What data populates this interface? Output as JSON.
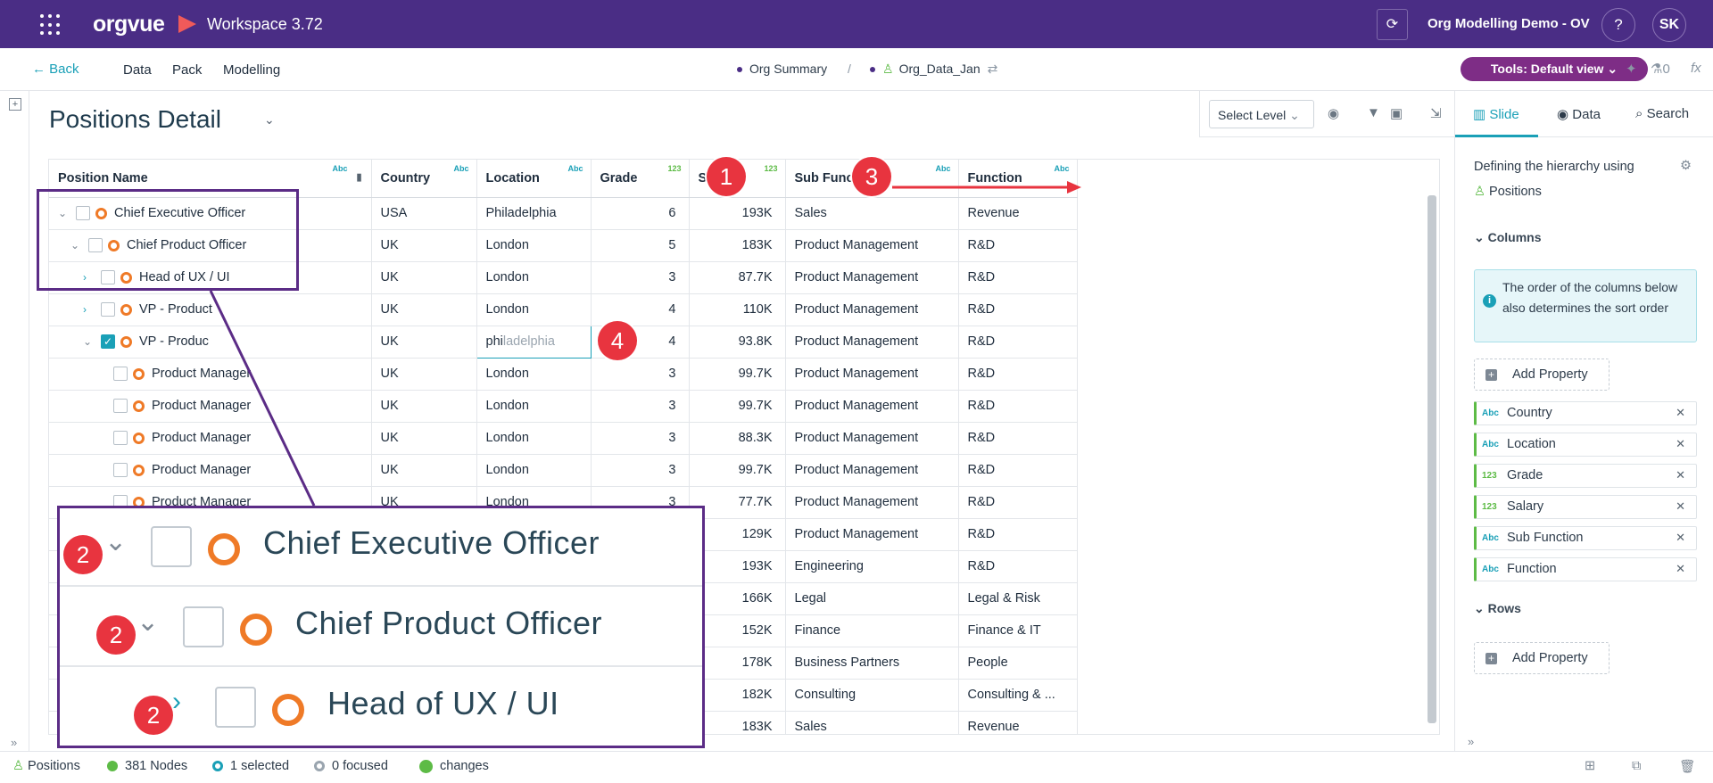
{
  "topbar": {
    "logo": "orgvue",
    "workspace": "Workspace  3.72",
    "project": "Org Modelling Demo - OV",
    "help": "?",
    "avatar": "SK"
  },
  "nav": {
    "back": "Back",
    "items": [
      "Data",
      "Pack",
      "Modelling"
    ],
    "crumb1": "Org Summary",
    "separator": "/",
    "crumb2": "Org_Data_Jan",
    "tools_btn": "Tools: Default view",
    "count": "0"
  },
  "page": {
    "title": "Positions Detail",
    "select_level": "Select Level"
  },
  "table": {
    "columns": [
      {
        "label": "Position Name",
        "type": "Abc"
      },
      {
        "label": "Country",
        "type": "Abc"
      },
      {
        "label": "Location",
        "type": "Abc"
      },
      {
        "label": "Grade",
        "type": "123"
      },
      {
        "label": "Sa",
        "type": "123"
      },
      {
        "label": "Sub Functi",
        "type": "Abc"
      },
      {
        "label": "Function",
        "type": "Abc"
      }
    ],
    "rows": [
      {
        "name": "Chief Executive Officer",
        "country": "USA",
        "location": "Philadelphia",
        "grade": "6",
        "salary": "193K",
        "sub": "Sales",
        "func": "Revenue"
      },
      {
        "name": "Chief Product Officer",
        "country": "UK",
        "location": "London",
        "grade": "5",
        "salary": "183K",
        "sub": "Product Management",
        "func": "R&D"
      },
      {
        "name": "Head of UX / UI",
        "country": "UK",
        "location": "London",
        "grade": "3",
        "salary": "87.7K",
        "sub": "Product Management",
        "func": "R&D"
      },
      {
        "name": "VP - Product",
        "country": "UK",
        "location": "London",
        "grade": "4",
        "salary": "110K",
        "sub": "Product Management",
        "func": "R&D"
      },
      {
        "name": "VP - Produc",
        "country": "UK",
        "location_typed": "phi",
        "location_hint": "ladelphia",
        "grade": "4",
        "salary": "93.8K",
        "sub": "Product Management",
        "func": "R&D"
      },
      {
        "name": "Product Manager",
        "country": "UK",
        "location": "London",
        "grade": "3",
        "salary": "99.7K",
        "sub": "Product Management",
        "func": "R&D"
      },
      {
        "name": "Product Manager",
        "country": "UK",
        "location": "London",
        "grade": "3",
        "salary": "99.7K",
        "sub": "Product Management",
        "func": "R&D"
      },
      {
        "name": "Product Manager",
        "country": "UK",
        "location": "London",
        "grade": "3",
        "salary": "88.3K",
        "sub": "Product Management",
        "func": "R&D"
      },
      {
        "name": "Product Manager",
        "country": "UK",
        "location": "London",
        "grade": "3",
        "salary": "99.7K",
        "sub": "Product Management",
        "func": "R&D"
      },
      {
        "name": "Product Manager",
        "country": "UK",
        "location": "London",
        "grade": "3",
        "salary": "77.7K",
        "sub": "Product Management",
        "func": "R&D"
      },
      {
        "salary": "129K",
        "sub": "Product Management",
        "func": "R&D"
      },
      {
        "salary": "193K",
        "sub": "Engineering",
        "func": "R&D"
      },
      {
        "salary": "166K",
        "sub": "Legal",
        "func": "Legal & Risk"
      },
      {
        "salary": "152K",
        "sub": "Finance",
        "func": "Finance & IT"
      },
      {
        "salary": "178K",
        "sub": "Business Partners",
        "func": "People"
      },
      {
        "salary": "182K",
        "sub": "Consulting",
        "func": "Consulting & ..."
      },
      {
        "salary": "183K",
        "sub": "Sales",
        "func": "Revenue"
      }
    ]
  },
  "zoom": {
    "rows": [
      "Chief Executive Officer",
      "Chief Product Officer",
      "Head of UX / UI"
    ]
  },
  "badges": [
    "1",
    "2",
    "3",
    "4"
  ],
  "panel": {
    "tabs": [
      "Slide",
      "Data",
      "Search"
    ],
    "hierarchy_text": "Defining the hierarchy using",
    "hierarchy_value": "Positions",
    "columns_h": "Columns",
    "info": "The order of the columns below also determines the sort order",
    "add_property": "Add Property",
    "properties": [
      {
        "type": "Abc",
        "label": "Country"
      },
      {
        "type": "Abc",
        "label": "Location"
      },
      {
        "type": "123",
        "label": "Grade"
      },
      {
        "type": "123",
        "label": "Salary"
      },
      {
        "type": "Abc",
        "label": "Sub Function"
      },
      {
        "type": "Abc",
        "label": "Function"
      }
    ],
    "rows_h": "Rows"
  },
  "status": {
    "positions": "Positions",
    "nodes": "381 Nodes",
    "selected": "1 selected",
    "focused": "0 focused",
    "changes": "changes"
  },
  "colors": {
    "topbar": "#4a2d85",
    "accent": "#1aa0b7",
    "tools": "#7e2d86",
    "badge": "#e8343f",
    "node": "#ef7a27"
  }
}
